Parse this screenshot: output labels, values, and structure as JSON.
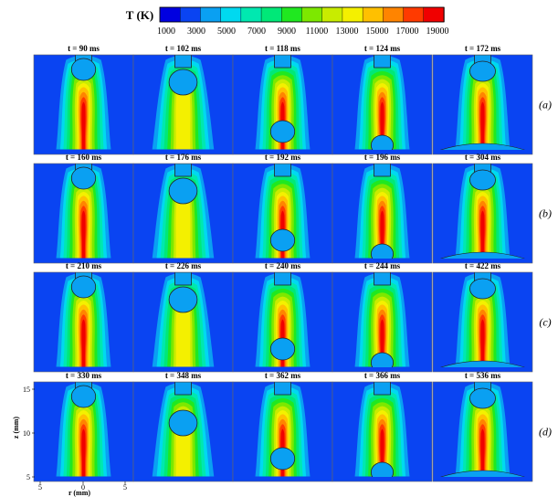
{
  "colorbar": {
    "title": "T (K)",
    "ticks": [
      "1000",
      "3000",
      "5000",
      "7000",
      "9000",
      "11000",
      "13000",
      "15000",
      "17000",
      "19000"
    ],
    "colors": [
      "#0000e0",
      "#0a44f2",
      "#0aa0f2",
      "#00d9f0",
      "#00e8b0",
      "#00e878",
      "#20e820",
      "#7de800",
      "#c8ec00",
      "#f4f000",
      "#ffc000",
      "#ff8400",
      "#ff3a00",
      "#f00000"
    ]
  },
  "rows": [
    {
      "label": "(a)",
      "times": [
        "t = 90 ms",
        "t = 102 ms",
        "t = 118 ms",
        "t = 124 ms",
        "t = 172 ms"
      ]
    },
    {
      "label": "(b)",
      "times": [
        "t = 160 ms",
        "t = 176 ms",
        "t = 192 ms",
        "t = 196 ms",
        "t = 304 ms"
      ]
    },
    {
      "label": "(c)",
      "times": [
        "t = 210 ms",
        "t = 226 ms",
        "t = 240 ms",
        "t = 244 ms",
        "t = 422 ms"
      ]
    },
    {
      "label": "(d)",
      "times": [
        "t = 330 ms",
        "t = 348 ms",
        "t = 362 ms",
        "t = 366 ms",
        "t = 536 ms"
      ]
    }
  ],
  "axes": {
    "z_label": "z (mm)",
    "z_ticks": [
      "15",
      "10",
      "5"
    ],
    "r_label": "r (mm)",
    "r_ticks": [
      "5",
      "0",
      "5"
    ]
  }
}
